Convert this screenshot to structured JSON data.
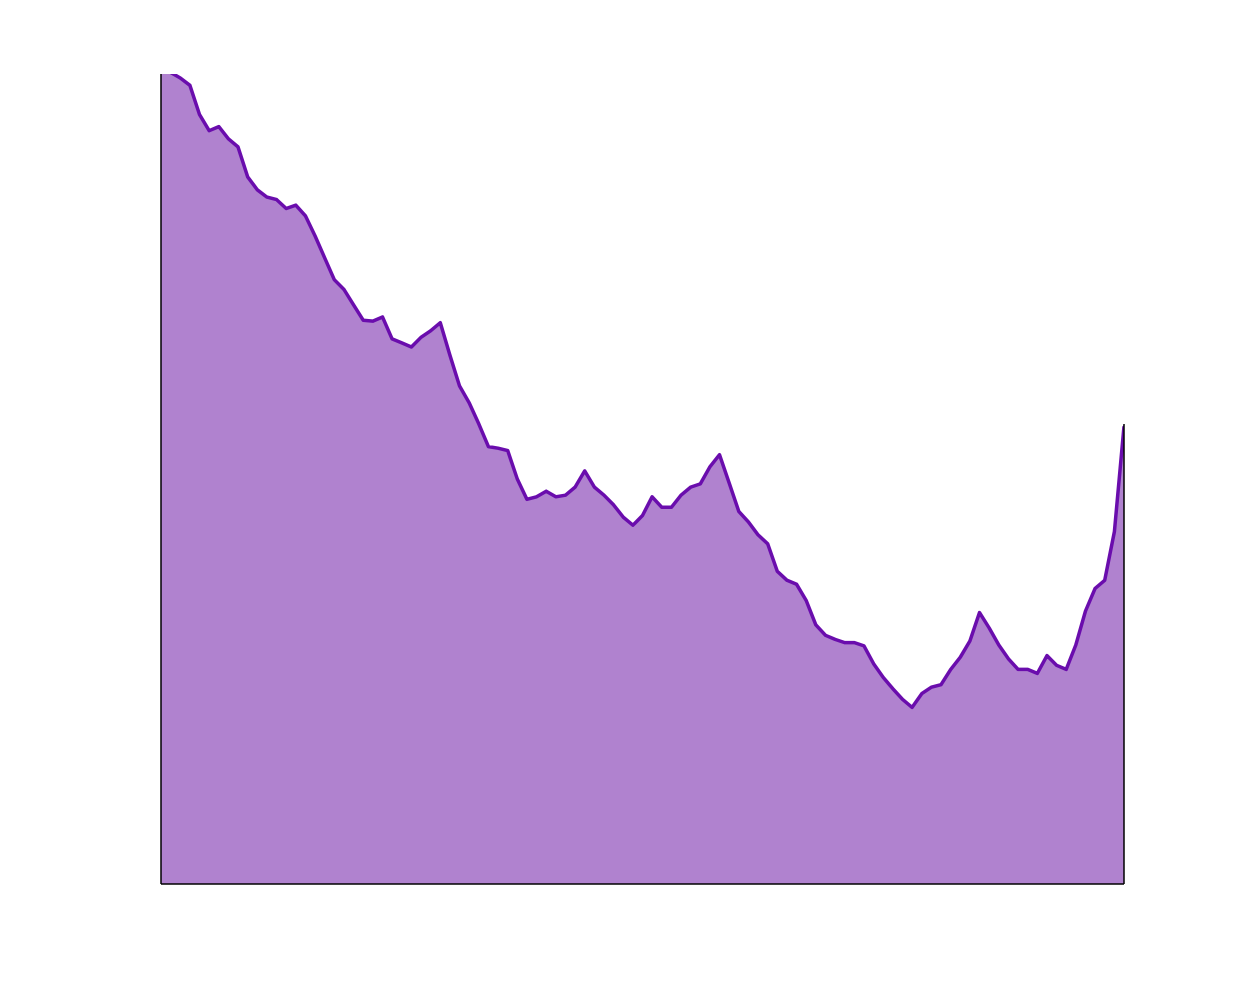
{
  "chart_data": {
    "type": "area",
    "title": "",
    "xlabel": "",
    "ylabel": "",
    "xlim": [
      0,
      100
    ],
    "ylim": [
      0,
      100
    ],
    "grid": false,
    "legend": "none",
    "colors": {
      "fill": "#b082cf",
      "line": "#6a0dad",
      "axis": "#000000"
    },
    "series": [
      {
        "x": [
          0,
          1,
          2,
          3,
          4,
          5,
          6,
          7,
          8,
          9,
          10,
          11,
          12,
          13,
          14,
          15,
          16,
          17,
          18,
          19,
          20,
          21,
          22,
          23,
          24,
          25,
          26,
          27,
          28,
          29,
          30,
          31,
          32,
          33,
          34,
          35,
          36,
          37,
          38,
          39,
          40,
          41,
          42,
          43,
          44,
          45,
          46,
          47,
          48,
          49,
          50,
          51,
          52,
          53,
          54,
          55,
          56,
          57,
          58,
          59,
          60,
          61,
          62,
          63,
          64,
          65,
          66,
          67,
          68,
          69,
          70,
          71,
          72,
          73,
          74,
          75,
          76,
          77,
          78,
          79,
          80,
          81,
          82,
          83,
          84,
          85,
          86,
          87,
          88,
          89,
          90,
          91,
          92,
          93,
          94,
          95,
          96,
          97,
          98,
          99,
          100
        ],
        "values": [
          100.8,
          100.2,
          99.5,
          98.6,
          95.0,
          93.0,
          93.5,
          92.0,
          91.0,
          87.3,
          85.7,
          84.8,
          84.5,
          83.4,
          83.8,
          82.5,
          80.0,
          77.3,
          74.6,
          73.4,
          71.5,
          69.6,
          69.5,
          70.0,
          67.3,
          66.8,
          66.3,
          67.5,
          68.3,
          69.3,
          65.3,
          61.5,
          59.4,
          56.8,
          54.0,
          53.8,
          53.5,
          50.0,
          47.5,
          47.8,
          48.5,
          47.8,
          48.0,
          49.0,
          51.0,
          49.0,
          48.0,
          46.8,
          45.3,
          44.3,
          45.5,
          47.8,
          46.5,
          46.5,
          48.0,
          49.0,
          49.4,
          51.5,
          53.0,
          49.5,
          46.0,
          44.7,
          43.1,
          42.0,
          38.6,
          37.5,
          37.0,
          35.0,
          32.0,
          30.7,
          30.2,
          29.8,
          29.8,
          29.4,
          27.2,
          25.5,
          24.1,
          22.8,
          21.8,
          23.5,
          24.3,
          24.6,
          26.5,
          28.0,
          30.0,
          33.5,
          31.6,
          29.5,
          27.8,
          26.5,
          26.5,
          26.0,
          28.2,
          27.0,
          26.5,
          29.5,
          33.7,
          36.5,
          37.5,
          43.5,
          56.5
        ]
      }
    ]
  }
}
